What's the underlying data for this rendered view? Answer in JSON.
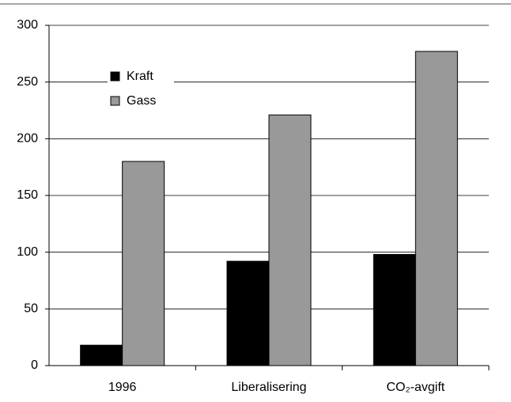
{
  "chart_data": {
    "type": "bar",
    "categories": [
      "1996",
      "Liberalisering",
      "CO₂-avgift"
    ],
    "series": [
      {
        "name": "Kraft",
        "color": "#000000",
        "values": [
          18,
          92,
          98
        ]
      },
      {
        "name": "Gass",
        "color": "#999999",
        "values": [
          180,
          221,
          277
        ]
      }
    ],
    "ylim": [
      0,
      300
    ],
    "yticks": [
      0,
      50,
      100,
      150,
      200,
      250,
      300
    ],
    "grid": true
  }
}
